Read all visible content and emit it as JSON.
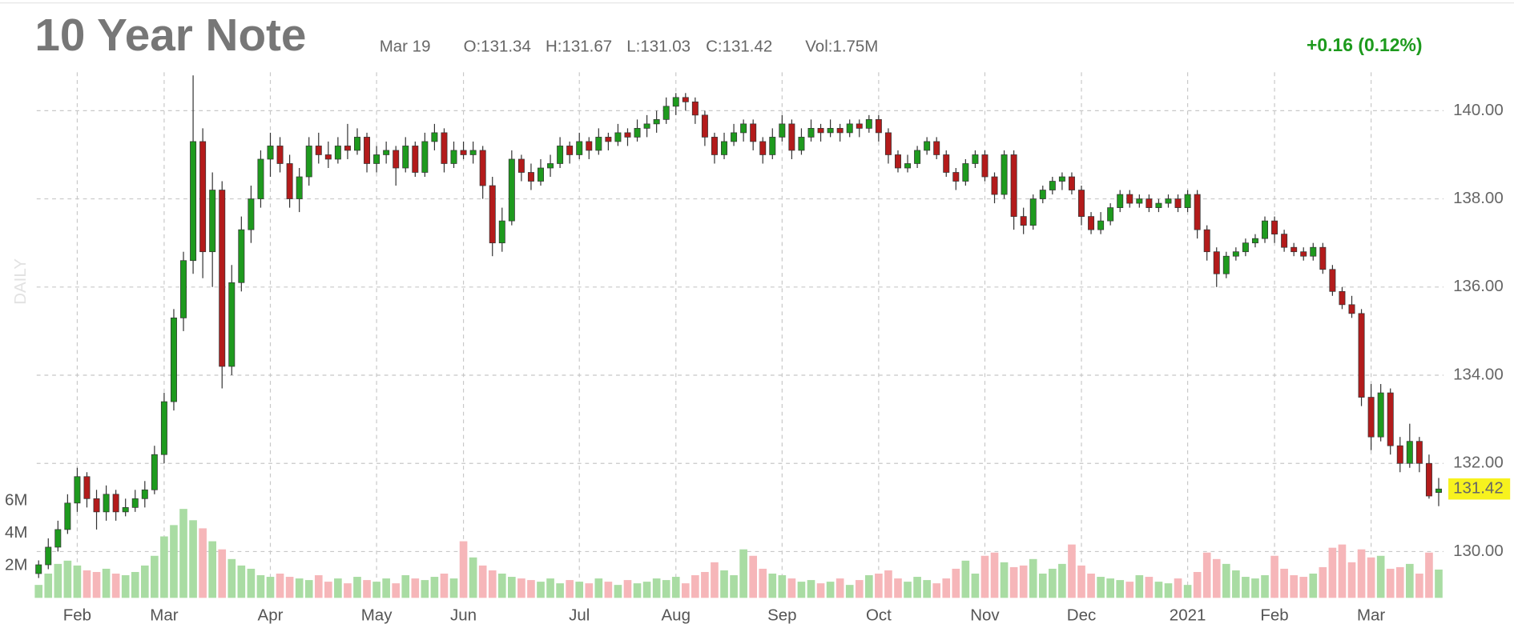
{
  "chart_data": {
    "type": "candlestick",
    "title": "10 Year Note",
    "quote": [
      "Mar 19",
      "O:131.34",
      "H:131.67",
      "L:131.03",
      "C:131.42",
      "Vol:1.75M"
    ],
    "change": "+0.16 (0.12%)",
    "period": "DAILY",
    "up_color": "#1e9a1e",
    "down_color": "#b31b1b",
    "volume_up_color": "#a9dca3",
    "volume_down_color": "#f6b6b9",
    "change_color": "#1d9a1d",
    "grid": true,
    "ylim": [
      128.95,
      140.87
    ],
    "yticks": [
      {
        "value": 130,
        "label": "130.00"
      },
      {
        "value": 132,
        "label": "132.00"
      },
      {
        "value": 134,
        "label": "134.00"
      },
      {
        "value": 136,
        "label": "136.00"
      },
      {
        "value": 138,
        "label": "138.00"
      },
      {
        "value": 140,
        "label": "140.00"
      }
    ],
    "y2lim": [
      0,
      32.5
    ],
    "y2ticks": [
      {
        "value": 2,
        "label": "2M"
      },
      {
        "value": 4,
        "label": "4M"
      },
      {
        "value": 6,
        "label": "6M"
      }
    ],
    "xticks": [
      {
        "value": 4,
        "label": "Feb"
      },
      {
        "value": 13,
        "label": "Mar"
      },
      {
        "value": 24,
        "label": "Apr"
      },
      {
        "value": 35,
        "label": "May"
      },
      {
        "value": 44,
        "label": "Jun"
      },
      {
        "value": 56,
        "label": "Jul"
      },
      {
        "value": 66,
        "label": "Aug"
      },
      {
        "value": 77,
        "label": "Sep"
      },
      {
        "value": 87,
        "label": "Oct"
      },
      {
        "value": 98,
        "label": "Nov"
      },
      {
        "value": 108,
        "label": "Dec"
      },
      {
        "value": 119,
        "label": "2021"
      },
      {
        "value": 128,
        "label": "Feb"
      },
      {
        "value": 138,
        "label": "Mar"
      }
    ],
    "ohlc": [
      [
        129.5,
        129.8,
        129.4,
        129.7
      ],
      [
        129.7,
        130.3,
        129.6,
        130.1
      ],
      [
        130.1,
        130.7,
        130.0,
        130.5
      ],
      [
        130.5,
        131.3,
        130.4,
        131.1
      ],
      [
        131.1,
        131.9,
        130.9,
        131.7
      ],
      [
        131.7,
        131.8,
        131.0,
        131.2
      ],
      [
        131.2,
        131.4,
        130.5,
        130.9
      ],
      [
        130.9,
        131.5,
        130.7,
        131.3
      ],
      [
        131.3,
        131.4,
        130.7,
        130.9
      ],
      [
        130.9,
        131.2,
        130.8,
        131.0
      ],
      [
        131.0,
        131.4,
        130.9,
        131.2
      ],
      [
        131.2,
        131.6,
        131.0,
        131.4
      ],
      [
        131.4,
        132.4,
        131.3,
        132.2
      ],
      [
        132.2,
        133.6,
        132.0,
        133.4
      ],
      [
        133.4,
        135.5,
        133.2,
        135.3
      ],
      [
        135.3,
        136.8,
        135.0,
        136.6
      ],
      [
        136.6,
        140.8,
        136.3,
        139.3
      ],
      [
        139.3,
        139.6,
        136.2,
        136.8
      ],
      [
        136.8,
        138.6,
        136.0,
        138.2
      ],
      [
        138.2,
        138.4,
        133.7,
        134.2
      ],
      [
        134.2,
        136.5,
        134.0,
        136.1
      ],
      [
        136.1,
        137.6,
        135.9,
        137.3
      ],
      [
        137.3,
        138.3,
        137.0,
        138.0
      ],
      [
        138.0,
        139.1,
        137.8,
        138.9
      ],
      [
        138.9,
        139.5,
        138.5,
        139.2
      ],
      [
        139.2,
        139.4,
        138.6,
        138.8
      ],
      [
        138.8,
        139.0,
        137.8,
        138.0
      ],
      [
        138.0,
        138.7,
        137.7,
        138.5
      ],
      [
        138.5,
        139.4,
        138.3,
        139.2
      ],
      [
        139.2,
        139.5,
        138.8,
        139.0
      ],
      [
        139.0,
        139.3,
        138.7,
        138.9
      ],
      [
        138.9,
        139.4,
        138.8,
        139.2
      ],
      [
        139.2,
        139.7,
        138.9,
        139.1
      ],
      [
        139.1,
        139.6,
        139.0,
        139.4
      ],
      [
        139.4,
        139.5,
        138.6,
        138.8
      ],
      [
        138.8,
        139.2,
        138.6,
        139.0
      ],
      [
        139.0,
        139.3,
        138.8,
        139.1
      ],
      [
        139.1,
        139.2,
        138.3,
        138.7
      ],
      [
        138.7,
        139.4,
        138.6,
        139.2
      ],
      [
        139.2,
        139.3,
        138.5,
        138.6
      ],
      [
        138.6,
        139.5,
        138.5,
        139.3
      ],
      [
        139.3,
        139.7,
        139.1,
        139.5
      ],
      [
        139.5,
        139.6,
        138.6,
        138.8
      ],
      [
        138.8,
        139.3,
        138.7,
        139.1
      ],
      [
        139.1,
        139.3,
        138.9,
        139.0
      ],
      [
        139.0,
        139.3,
        138.8,
        139.1
      ],
      [
        139.1,
        139.2,
        138.0,
        138.3
      ],
      [
        138.3,
        138.5,
        136.7,
        137.0
      ],
      [
        137.0,
        137.8,
        136.8,
        137.5
      ],
      [
        137.5,
        139.1,
        137.4,
        138.9
      ],
      [
        138.9,
        139.0,
        138.4,
        138.6
      ],
      [
        138.6,
        138.8,
        138.2,
        138.4
      ],
      [
        138.4,
        138.9,
        138.3,
        138.7
      ],
      [
        138.7,
        139.0,
        138.5,
        138.8
      ],
      [
        138.8,
        139.4,
        138.7,
        139.2
      ],
      [
        139.2,
        139.3,
        138.8,
        139.0
      ],
      [
        139.0,
        139.5,
        138.9,
        139.3
      ],
      [
        139.3,
        139.4,
        138.9,
        139.1
      ],
      [
        139.1,
        139.6,
        139.0,
        139.4
      ],
      [
        139.4,
        139.5,
        139.1,
        139.3
      ],
      [
        139.3,
        139.7,
        139.2,
        139.5
      ],
      [
        139.5,
        139.6,
        139.2,
        139.4
      ],
      [
        139.4,
        139.8,
        139.3,
        139.6
      ],
      [
        139.6,
        139.9,
        139.4,
        139.7
      ],
      [
        139.7,
        140.0,
        139.5,
        139.8
      ],
      [
        139.8,
        140.3,
        139.7,
        140.1
      ],
      [
        140.1,
        140.4,
        139.9,
        140.3
      ],
      [
        140.3,
        140.4,
        140.0,
        140.2
      ],
      [
        140.2,
        140.3,
        139.7,
        139.9
      ],
      [
        139.9,
        140.0,
        139.2,
        139.4
      ],
      [
        139.4,
        139.5,
        138.8,
        139.0
      ],
      [
        139.0,
        139.5,
        138.9,
        139.3
      ],
      [
        139.3,
        139.7,
        139.2,
        139.5
      ],
      [
        139.5,
        139.8,
        139.3,
        139.7
      ],
      [
        139.7,
        139.8,
        139.1,
        139.3
      ],
      [
        139.3,
        139.4,
        138.8,
        139.0
      ],
      [
        139.0,
        139.6,
        138.9,
        139.4
      ],
      [
        139.4,
        139.9,
        139.3,
        139.7
      ],
      [
        139.7,
        139.8,
        138.9,
        139.1
      ],
      [
        139.1,
        139.6,
        139.0,
        139.4
      ],
      [
        139.4,
        139.8,
        139.3,
        139.6
      ],
      [
        139.6,
        139.7,
        139.3,
        139.5
      ],
      [
        139.5,
        139.8,
        139.4,
        139.6
      ],
      [
        139.6,
        139.7,
        139.3,
        139.5
      ],
      [
        139.5,
        139.8,
        139.4,
        139.7
      ],
      [
        139.7,
        139.8,
        139.4,
        139.6
      ],
      [
        139.6,
        139.9,
        139.5,
        139.8
      ],
      [
        139.8,
        139.9,
        139.3,
        139.5
      ],
      [
        139.5,
        139.6,
        138.8,
        139.0
      ],
      [
        139.0,
        139.1,
        138.6,
        138.7
      ],
      [
        138.7,
        139.0,
        138.6,
        138.8
      ],
      [
        138.8,
        139.2,
        138.7,
        139.1
      ],
      [
        139.1,
        139.4,
        139.0,
        139.3
      ],
      [
        139.3,
        139.4,
        138.9,
        139.0
      ],
      [
        139.0,
        139.1,
        138.5,
        138.6
      ],
      [
        138.6,
        138.7,
        138.2,
        138.4
      ],
      [
        138.4,
        138.9,
        138.3,
        138.8
      ],
      [
        138.8,
        139.1,
        138.7,
        139.0
      ],
      [
        139.0,
        139.1,
        138.4,
        138.5
      ],
      [
        138.5,
        138.6,
        137.9,
        138.1
      ],
      [
        138.1,
        139.1,
        138.0,
        139.0
      ],
      [
        139.0,
        139.1,
        137.3,
        137.6
      ],
      [
        137.6,
        137.8,
        137.2,
        137.4
      ],
      [
        137.4,
        138.1,
        137.3,
        138.0
      ],
      [
        138.0,
        138.3,
        137.9,
        138.2
      ],
      [
        138.2,
        138.5,
        138.1,
        138.4
      ],
      [
        138.4,
        138.6,
        138.2,
        138.5
      ],
      [
        138.5,
        138.6,
        138.1,
        138.2
      ],
      [
        138.2,
        138.3,
        137.4,
        137.6
      ],
      [
        137.6,
        137.7,
        137.2,
        137.3
      ],
      [
        137.3,
        137.7,
        137.2,
        137.5
      ],
      [
        137.5,
        137.9,
        137.4,
        137.8
      ],
      [
        137.8,
        138.2,
        137.7,
        138.1
      ],
      [
        138.1,
        138.2,
        137.8,
        137.9
      ],
      [
        137.9,
        138.1,
        137.8,
        138.0
      ],
      [
        138.0,
        138.1,
        137.7,
        137.8
      ],
      [
        137.8,
        138.0,
        137.7,
        137.9
      ],
      [
        137.9,
        138.1,
        137.8,
        138.0
      ],
      [
        138.0,
        138.1,
        137.7,
        137.8
      ],
      [
        137.8,
        138.2,
        137.7,
        138.1
      ],
      [
        138.1,
        138.2,
        137.1,
        137.3
      ],
      [
        137.3,
        137.4,
        136.6,
        136.8
      ],
      [
        136.8,
        136.9,
        136.0,
        136.3
      ],
      [
        136.3,
        136.8,
        136.2,
        136.7
      ],
      [
        136.7,
        136.9,
        136.6,
        136.8
      ],
      [
        136.8,
        137.1,
        136.7,
        137.0
      ],
      [
        137.0,
        137.2,
        136.9,
        137.1
      ],
      [
        137.1,
        137.6,
        137.0,
        137.5
      ],
      [
        137.5,
        137.6,
        137.0,
        137.2
      ],
      [
        137.2,
        137.3,
        136.8,
        136.9
      ],
      [
        136.9,
        137.0,
        136.7,
        136.8
      ],
      [
        136.8,
        136.9,
        136.6,
        136.7
      ],
      [
        136.7,
        137.0,
        136.6,
        136.9
      ],
      [
        136.9,
        137.0,
        136.3,
        136.4
      ],
      [
        136.4,
        136.5,
        135.8,
        135.9
      ],
      [
        135.9,
        136.0,
        135.5,
        135.6
      ],
      [
        135.6,
        135.8,
        135.3,
        135.4
      ],
      [
        135.4,
        135.5,
        133.3,
        133.5
      ],
      [
        133.5,
        133.8,
        132.3,
        132.6
      ],
      [
        132.6,
        133.8,
        132.5,
        133.6
      ],
      [
        133.6,
        133.7,
        132.2,
        132.4
      ],
      [
        132.4,
        132.6,
        131.8,
        132.0
      ],
      [
        132.0,
        132.9,
        131.9,
        132.5
      ],
      [
        132.5,
        132.6,
        131.8,
        132.0
      ],
      [
        132.0,
        132.2,
        131.2,
        131.26
      ],
      [
        131.34,
        131.67,
        131.03,
        131.42
      ]
    ],
    "volume": [
      0.8,
      1.5,
      2.1,
      2.3,
      2.0,
      1.7,
      1.6,
      1.8,
      1.5,
      1.4,
      1.6,
      2.0,
      2.6,
      3.8,
      4.5,
      5.5,
      4.8,
      4.3,
      3.5,
      3.0,
      2.4,
      2.0,
      1.8,
      1.4,
      1.3,
      1.5,
      1.3,
      1.2,
      1.1,
      1.4,
      1.0,
      1.2,
      0.9,
      1.3,
      1.1,
      1.0,
      1.2,
      0.9,
      1.4,
      1.2,
      1.1,
      1.3,
      1.5,
      1.2,
      3.5,
      2.5,
      2.0,
      1.7,
      1.5,
      1.3,
      1.2,
      1.1,
      1.0,
      1.2,
      0.9,
      1.1,
      1.0,
      0.9,
      1.2,
      1.0,
      0.8,
      1.1,
      0.9,
      1.0,
      1.2,
      1.1,
      1.3,
      0.9,
      1.4,
      1.6,
      2.2,
      1.7,
      1.4,
      3.0,
      2.6,
      1.8,
      1.5,
      1.4,
      1.2,
      1.0,
      1.1,
      0.9,
      1.0,
      1.2,
      0.8,
      1.1,
      1.4,
      1.5,
      1.7,
      1.2,
      1.0,
      1.3,
      1.1,
      0.9,
      1.2,
      1.8,
      2.3,
      1.5,
      2.6,
      2.8,
      2.2,
      1.9,
      2.0,
      2.4,
      1.5,
      1.8,
      2.1,
      3.3,
      2.0,
      1.5,
      1.3,
      1.2,
      1.1,
      1.0,
      1.4,
      1.3,
      1.0,
      0.9,
      1.2,
      0.8,
      1.6,
      2.8,
      2.4,
      2.1,
      1.7,
      1.3,
      1.2,
      1.4,
      2.6,
      1.8,
      1.4,
      1.3,
      1.5,
      1.9,
      3.1,
      3.3,
      2.2,
      3.0,
      2.5,
      2.6,
      1.8,
      1.9,
      2.1,
      1.5,
      2.8,
      1.75
    ]
  }
}
